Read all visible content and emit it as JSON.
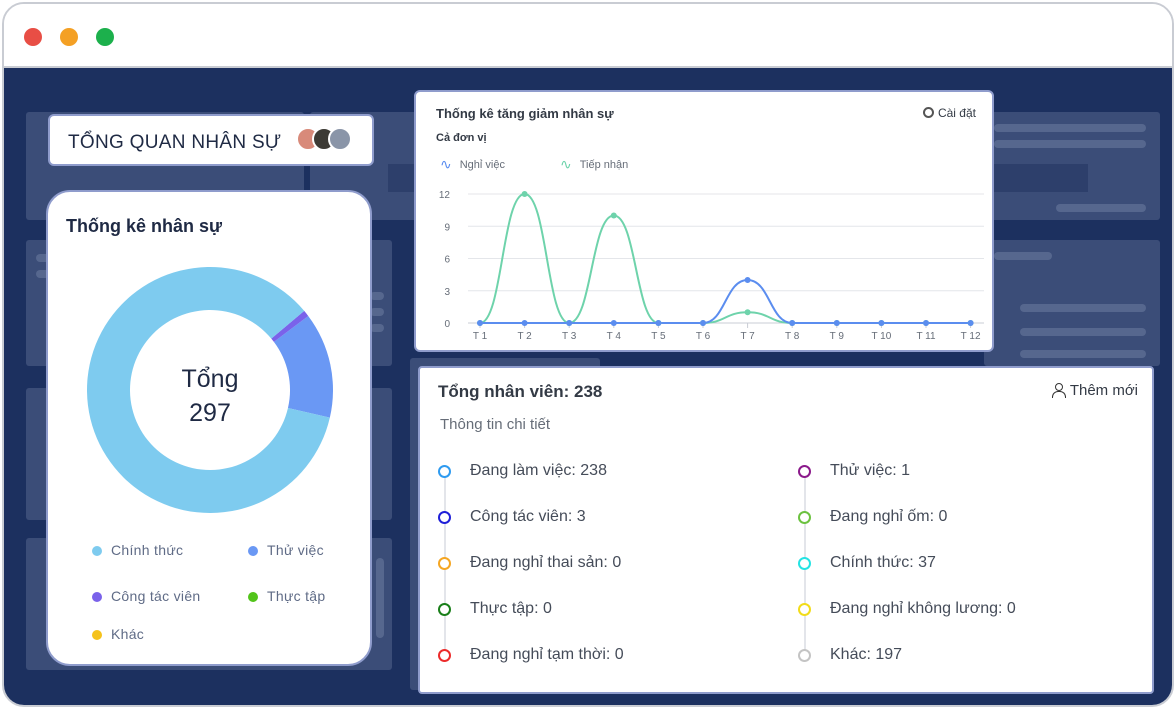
{
  "window": {
    "controls": [
      "close",
      "minimize",
      "maximize"
    ]
  },
  "overview": {
    "title": "TỔNG QUAN NHÂN SỰ",
    "avatar_icon": "avatar-group-icon"
  },
  "staff_stats": {
    "title": "Thống kê nhân sự",
    "total_label": "Tổng",
    "total_value": "297",
    "legend": [
      {
        "label": "Chính thức",
        "color": "#7ecbef"
      },
      {
        "label": "Thử việc",
        "color": "#6a98f4"
      },
      {
        "label": "Công tác viên",
        "color": "#7a62ea"
      },
      {
        "label": "Thực tập",
        "color": "#52c41a"
      },
      {
        "label": "Khác",
        "color": "#f5c21b"
      }
    ]
  },
  "trend": {
    "title": "Thống kê tăng giảm nhân sự",
    "settings_label": "Cài đặt",
    "unit_label": "Cả đơn vị"
  },
  "chart_data": {
    "type": "line",
    "title": "Thống kê tăng giảm nhân sự",
    "x": [
      "T 1",
      "T 2",
      "T 3",
      "T 4",
      "T 5",
      "T 6",
      "T 7",
      "T 8",
      "T 9",
      "T 10",
      "T 11",
      "T 12"
    ],
    "y_ticks": [
      0,
      3,
      6,
      9,
      12
    ],
    "ylim": [
      0,
      12
    ],
    "grid": true,
    "legend_position": "top-left",
    "series": [
      {
        "name": "Nghỉ việc",
        "color": "#5b8def",
        "values": [
          0,
          0,
          0,
          0,
          0,
          0,
          4,
          0,
          0,
          0,
          0,
          0
        ]
      },
      {
        "name": "Tiếp nhận",
        "color": "#6ed3ab",
        "values": [
          0,
          12,
          0,
          10,
          0,
          0,
          1,
          0,
          0,
          0,
          0,
          0
        ]
      }
    ]
  },
  "employees": {
    "title": "Tổng nhân viên: 238",
    "add_label": "Thêm mới",
    "subtitle": "Thông tin chi tiết",
    "left": [
      {
        "label": "Đang làm việc: 238",
        "color": "#2f9bf0"
      },
      {
        "label": "Công tác viên: 3",
        "color": "#1f1fd8"
      },
      {
        "label": "Đang nghỉ thai sản: 0",
        "color": "#f5a623"
      },
      {
        "label": "Thực tập: 0",
        "color": "#1a7f1a"
      },
      {
        "label": "Đang nghỉ tạm thời: 0",
        "color": "#ec2b2b"
      }
    ],
    "right": [
      {
        "label": "Thử việc: 1",
        "color": "#8b1a8b"
      },
      {
        "label": "Đang nghỉ ốm: 0",
        "color": "#6cc240"
      },
      {
        "label": "Chính thức: 37",
        "color": "#25e3e3"
      },
      {
        "label": "Đang nghỉ không lương: 0",
        "color": "#f2dc1a"
      },
      {
        "label": "Khác: 197",
        "color": "#c4c4c4"
      }
    ]
  }
}
